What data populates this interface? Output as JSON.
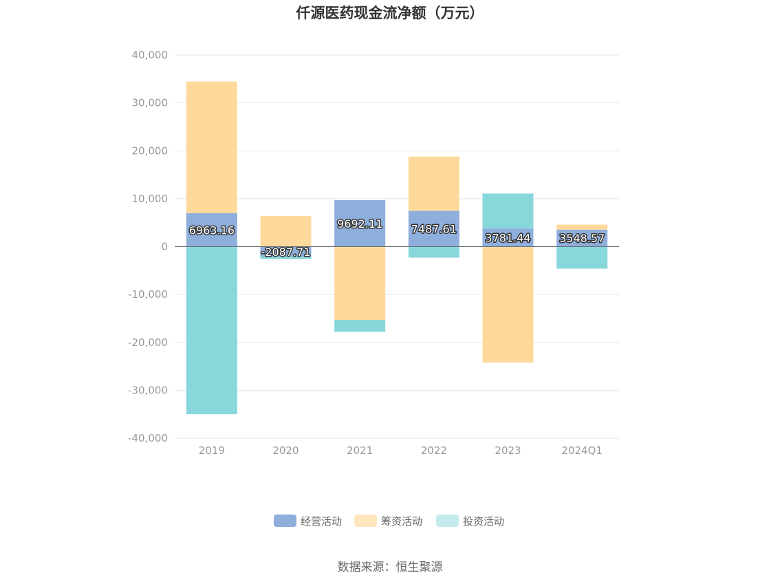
{
  "chart_data": {
    "type": "bar",
    "stacked": true,
    "title": "仟源医药现金流净额（万元）",
    "categories": [
      "2019",
      "2020",
      "2021",
      "2022",
      "2023",
      "2024Q1"
    ],
    "series": [
      {
        "name": "经营活动",
        "color": "#8eaedc",
        "values": [
          6963.16,
          -2087.71,
          9692.11,
          7487.61,
          3781.44,
          3548.57
        ],
        "labels": [
          "6963.16",
          "-2087.71",
          "9692.11",
          "7487.61",
          "3781.44",
          "3548.57"
        ]
      },
      {
        "name": "筹资活动",
        "color": "#ffd99b",
        "values": [
          27500,
          6400,
          -15300,
          11300,
          -24200,
          1050
        ]
      },
      {
        "name": "投资活动",
        "color": "#88d7da",
        "values": [
          -35000,
          -500,
          -2500,
          -2300,
          7300,
          -4600
        ]
      }
    ],
    "ylim": [
      -40000,
      40000
    ],
    "yticks": [
      40000,
      30000,
      20000,
      10000,
      0,
      -10000,
      -20000,
      -30000,
      -40000
    ],
    "ytick_labels": [
      "40,000",
      "30,000",
      "20,000",
      "10,000",
      "0",
      "-10,000",
      "-20,000",
      "-30,000",
      "-40,000"
    ],
    "grid": true,
    "legend_position": "bottom"
  },
  "legend_colors": [
    "#8eaedc",
    "#ffe6bf",
    "#c3eaec"
  ],
  "source": "数据来源：恒生聚源"
}
